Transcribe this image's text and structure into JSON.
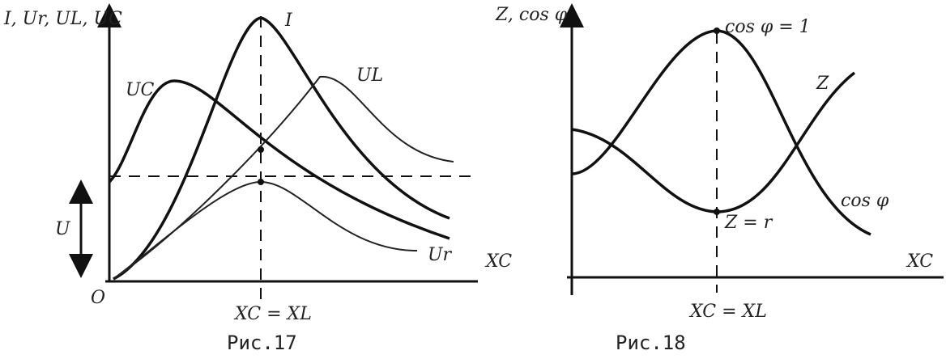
{
  "figures": [
    {
      "axis_y_label": "I, Ur, UL, UC",
      "curve_uc": "UC",
      "curve_i": "I",
      "curve_ul": "UL",
      "voltage": "U",
      "curve_ur": "Ur",
      "axis_x_label": "XC",
      "origin": "O",
      "resonance": "XC = XL",
      "caption": "Рис.17"
    },
    {
      "axis_y_label": "Z, cos φ",
      "peak": "cos φ = 1",
      "curve_z": "Z",
      "curve_cos": "cos φ",
      "minimum": "Z = r",
      "axis_x_label": "XC",
      "resonance": "XC = XL",
      "caption": "Рис.18"
    }
  ]
}
